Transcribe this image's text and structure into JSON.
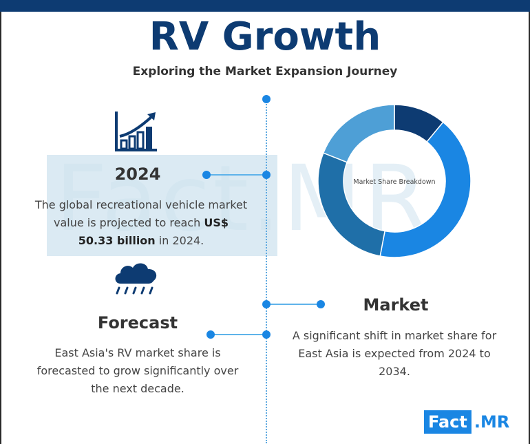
{
  "header": {
    "title": "RV Growth",
    "subtitle": "Exploring the Market Expansion Journey"
  },
  "watermark": {
    "text": "Fact.MR"
  },
  "section_2024": {
    "heading": "2024",
    "text_before": "The global recreational vehicle market value is projected to reach",
    "text_bold": "US$ 50.33 billion",
    "text_after": "in 2024.",
    "icon": "bar-chart-growth-icon"
  },
  "section_forecast": {
    "heading": "Forecast",
    "text": "East Asia's RV market share is forecasted to grow significantly over the next decade.",
    "icon": "rain-cloud-icon"
  },
  "section_market": {
    "heading": "Market",
    "text": "A significant shift in market share for East Asia is expected from 2024 to 2034."
  },
  "donut": {
    "center_label": "Market Share Breakdown",
    "segments": [
      {
        "value": 11,
        "color": "#0d3b72"
      },
      {
        "value": 42,
        "color": "#1a86e3"
      },
      {
        "value": 28,
        "color": "#1f6fa8"
      },
      {
        "value": 19,
        "color": "#4e9fd6"
      }
    ]
  },
  "logo": {
    "left": "Fact",
    "right": ".MR"
  },
  "colors": {
    "primary": "#0d3b72",
    "accent": "#1a86e3",
    "line": "#5fb3ea"
  }
}
